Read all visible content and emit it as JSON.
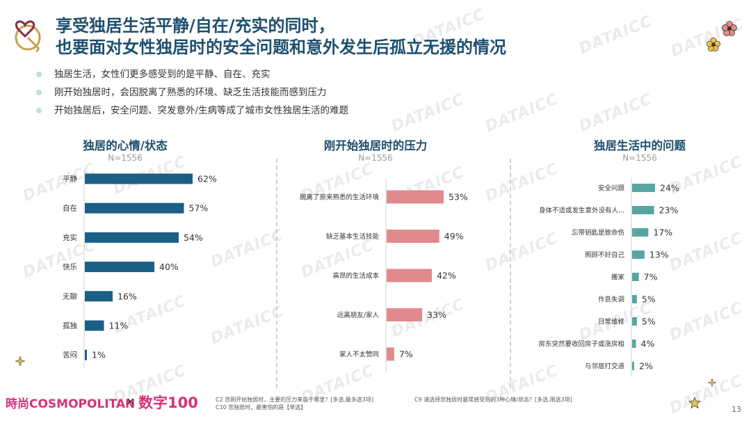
{
  "title_line1": "享受独居生活平静/自在/充实的同时，",
  "title_line2": "也要面对女性独居时的安全问题和意外发生后孤立无援的情况",
  "bullets": [
    "独居生活，女性们更多感受到的是平静、自在、充实",
    "刚开始独居时，会因脱离了熟悉的环境、缺乏生活技能而感到压力",
    "开始独居后，安全问题、突发意外/生病等成了城市女性独居生活的难题"
  ],
  "watermark": "DATAICC",
  "colors": {
    "accent": "#1d4f6e",
    "chart1": "#1c5f85",
    "chart2": "#e08a8e",
    "chart3": "#58a6a2",
    "brand": "#d6317a"
  },
  "chart_data": [
    {
      "type": "bar",
      "orientation": "horizontal",
      "title": "独居的心情/状态",
      "subtitle": "N=1556",
      "categories": [
        "平静",
        "自在",
        "充实",
        "快乐",
        "无聊",
        "孤独",
        "苦闷"
      ],
      "values": [
        62,
        57,
        54,
        40,
        16,
        11,
        1
      ],
      "unit": "%",
      "color": "#1c5f85",
      "xlim": [
        0,
        100
      ]
    },
    {
      "type": "bar",
      "orientation": "horizontal",
      "title": "刚开始独居时的压力",
      "subtitle": "N=1556",
      "categories": [
        "脱离了原来熟悉的生活环境",
        "缺乏基本生活技能",
        "高昂的生活成本",
        "远离朋友/家人",
        "家人不太赞同"
      ],
      "values": [
        53,
        49,
        42,
        33,
        7
      ],
      "unit": "%",
      "color": "#e08a8e",
      "xlim": [
        0,
        100
      ]
    },
    {
      "type": "bar",
      "orientation": "horizontal",
      "title": "独居生活中的问题",
      "subtitle": "N=1556",
      "categories": [
        "安全问题",
        "身体不适或发生意外没有人...",
        "忘带钥匙是致命伤",
        "照顾不好自己",
        "搬家",
        "作息失调",
        "日常维修",
        "房东突然要收回房子或涨房租",
        "与邻居打交道"
      ],
      "values": [
        24,
        23,
        17,
        13,
        7,
        5,
        5,
        4,
        2
      ],
      "unit": "%",
      "color": "#58a6a2",
      "xlim": [
        0,
        100
      ]
    }
  ],
  "footnotes": {
    "c2": "C2 您刚开始独居时，主要的压力来自于哪里？[多选,最多选3项]",
    "c10": "C10 您独居时，最害怕的是【单选】",
    "c9": "C9 请选择您独居时最常感受到的3种心情/状态？[多选,限选3项]"
  },
  "brand_left": "時尚COSMOPOLITAN",
  "brand_x": "×",
  "brand_right": "数字100",
  "page_number": "13"
}
